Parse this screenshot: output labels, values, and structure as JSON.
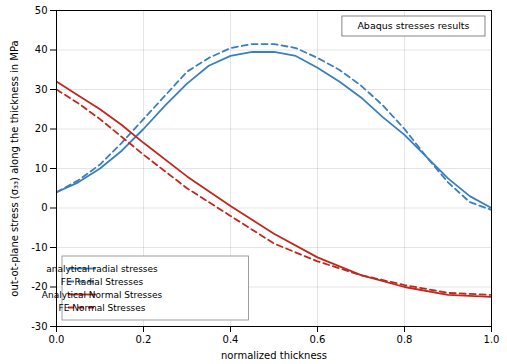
{
  "chart_data": {
    "type": "line",
    "xlabel": "normalized thickness",
    "ylabel": "out-ot-plane stress (σ₃₃) along the thickness in MPa",
    "xlim": [
      0,
      1
    ],
    "ylim": [
      -30,
      50
    ],
    "xticks": [
      {
        "value": 0,
        "label": "0.0"
      },
      {
        "value": 0.2,
        "label": "0.2"
      },
      {
        "value": 0.4,
        "label": "0.4"
      },
      {
        "value": 0.6,
        "label": "0.6"
      },
      {
        "value": 0.8,
        "label": "0.8"
      },
      {
        "value": 1,
        "label": "1.0"
      }
    ],
    "yticks": [
      -30,
      -20,
      -10,
      0,
      10,
      20,
      30,
      40,
      50
    ],
    "grid": true,
    "legend": "lower left",
    "annotations": [
      "Abaqus stresses results"
    ],
    "series": [
      {
        "name": "analytical radial stresses",
        "color": "#3A7FBF",
        "line_style": "solid",
        "x": [
          0,
          0.05,
          0.1,
          0.15,
          0.2,
          0.25,
          0.3,
          0.35,
          0.4,
          0.45,
          0.5,
          0.55,
          0.6,
          0.65,
          0.7,
          0.75,
          0.8,
          0.85,
          0.9,
          0.95,
          1.0
        ],
        "values": [
          4,
          6.5,
          10,
          14.5,
          20,
          26,
          31.5,
          36,
          38.5,
          39.5,
          39.5,
          38.5,
          35.5,
          32,
          28,
          23,
          18.5,
          13,
          7.5,
          3,
          0
        ]
      },
      {
        "name": "FE Radial Stresses",
        "color": "#3A7FBF",
        "line_style": "dashed",
        "x": [
          0,
          0.05,
          0.1,
          0.15,
          0.2,
          0.25,
          0.3,
          0.35,
          0.4,
          0.45,
          0.5,
          0.55,
          0.6,
          0.65,
          0.7,
          0.75,
          0.8,
          0.85,
          0.9,
          0.95,
          1.0
        ],
        "values": [
          4,
          7,
          11,
          16.5,
          22.5,
          28.5,
          34.5,
          38,
          40.5,
          41.5,
          41.5,
          40.5,
          38,
          35,
          31,
          26,
          20,
          13,
          6.5,
          1.5,
          -0.5
        ]
      },
      {
        "name": "Analytical Normal Stresses",
        "color": "#C0281C",
        "line_style": "solid",
        "x": [
          0,
          0.05,
          0.1,
          0.15,
          0.2,
          0.3,
          0.4,
          0.5,
          0.6,
          0.7,
          0.8,
          0.9,
          1.0
        ],
        "values": [
          32,
          28.5,
          25,
          21,
          16.5,
          8,
          0.5,
          -6.5,
          -12.5,
          -17,
          -20,
          -22,
          -22.5
        ]
      },
      {
        "name": "FE Normal Stresses",
        "color": "#C0281C",
        "line_style": "dashed",
        "x": [
          0,
          0.05,
          0.1,
          0.15,
          0.2,
          0.3,
          0.4,
          0.5,
          0.6,
          0.7,
          0.8,
          0.9,
          1.0
        ],
        "values": [
          30,
          26.5,
          22.5,
          18,
          13.5,
          5,
          -2,
          -9,
          -13.5,
          -17,
          -19.5,
          -21.5,
          -22
        ]
      }
    ]
  }
}
